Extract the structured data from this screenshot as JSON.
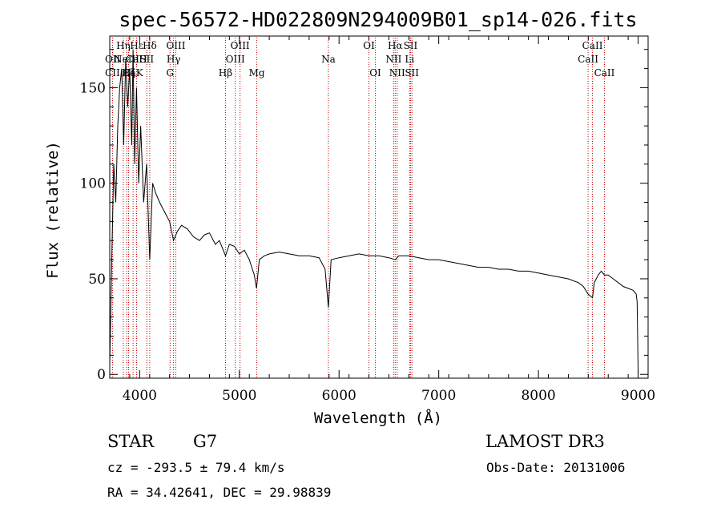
{
  "chart_data": {
    "type": "line",
    "title": "spec-56572-HD022809N294009B01_sp14-026.fits",
    "xlabel": "Wavelength (Å)",
    "ylabel": "Flux (relative)",
    "xlim": [
      3700,
      9100
    ],
    "ylim": [
      -2,
      177
    ],
    "xticks": [
      4000,
      5000,
      6000,
      7000,
      8000,
      9000
    ],
    "yticks": [
      0,
      50,
      100,
      150
    ],
    "spectrum": {
      "name": "flux",
      "x": [
        3700,
        3720,
        3740,
        3760,
        3780,
        3800,
        3820,
        3840,
        3860,
        3880,
        3900,
        3920,
        3934,
        3950,
        3968,
        3990,
        4010,
        4040,
        4070,
        4101,
        4130,
        4160,
        4200,
        4250,
        4300,
        4340,
        4380,
        4420,
        4480,
        4540,
        4600,
        4650,
        4700,
        4760,
        4800,
        4861,
        4900,
        4950,
        5000,
        5050,
        5100,
        5150,
        5172,
        5200,
        5250,
        5300,
        5400,
        5500,
        5600,
        5700,
        5800,
        5860,
        5893,
        5920,
        6000,
        6100,
        6200,
        6300,
        6400,
        6500,
        6563,
        6600,
        6700,
        6800,
        6900,
        7000,
        7100,
        7200,
        7300,
        7400,
        7500,
        7600,
        7700,
        7800,
        7900,
        8000,
        8100,
        8200,
        8300,
        8400,
        8450,
        8498,
        8542,
        8560,
        8600,
        8630,
        8662,
        8700,
        8750,
        8800,
        8850,
        8900,
        8950,
        8980,
        8990,
        9000
      ],
      "y": [
        5,
        60,
        110,
        90,
        130,
        150,
        160,
        120,
        165,
        140,
        160,
        120,
        170,
        110,
        150,
        100,
        130,
        90,
        110,
        60,
        100,
        95,
        90,
        85,
        80,
        70,
        75,
        78,
        76,
        72,
        70,
        73,
        74,
        68,
        70,
        62,
        68,
        67,
        63,
        65,
        60,
        52,
        45,
        60,
        62,
        63,
        64,
        63,
        62,
        62,
        61,
        55,
        35,
        60,
        61,
        62,
        63,
        62,
        62,
        61,
        60,
        62,
        62,
        61,
        60,
        60,
        59,
        58,
        57,
        56,
        56,
        55,
        55,
        54,
        54,
        53,
        52,
        51,
        50,
        48,
        46,
        42,
        40,
        48,
        52,
        54,
        52,
        52,
        50,
        48,
        46,
        45,
        44,
        42,
        38,
        0
      ]
    },
    "line_markers": [
      {
        "name": "CII",
        "wavelength": 3727,
        "row": 3
      },
      {
        "name": "OII",
        "wavelength": 3729,
        "row": 2
      },
      {
        "name": "Hη",
        "wavelength": 3836,
        "row": 1
      },
      {
        "name": "Hζ",
        "wavelength": 3889,
        "row": 3
      },
      {
        "name": "NeIII",
        "wavelength": 3869,
        "row": 2
      },
      {
        "name": "Hε",
        "wavelength": 3970,
        "row": 1
      },
      {
        "name": "CaK",
        "wavelength": 3934,
        "row": 3
      },
      {
        "name": "CaH",
        "wavelength": 3968,
        "row": 2
      },
      {
        "name": "Hδ",
        "wavelength": 4101,
        "row": 1
      },
      {
        "name": "SII",
        "wavelength": 4072,
        "row": 2
      },
      {
        "name": "OIII",
        "wavelength": 4363,
        "row": 1
      },
      {
        "name": "Hγ",
        "wavelength": 4340,
        "row": 2
      },
      {
        "name": "G",
        "wavelength": 4305,
        "row": 3
      },
      {
        "name": "Hβ",
        "wavelength": 4861,
        "row": 3
      },
      {
        "name": "OIII",
        "wavelength": 5007,
        "row": 1
      },
      {
        "name": "OIII",
        "wavelength": 4959,
        "row": 2
      },
      {
        "name": "Mg",
        "wavelength": 5175,
        "row": 3
      },
      {
        "name": "Na",
        "wavelength": 5893,
        "row": 2
      },
      {
        "name": "OI",
        "wavelength": 6300,
        "row": 1
      },
      {
        "name": "OI",
        "wavelength": 6364,
        "row": 3
      },
      {
        "name": "Hα",
        "wavelength": 6563,
        "row": 1
      },
      {
        "name": "NII",
        "wavelength": 6548,
        "row": 2
      },
      {
        "name": "NII",
        "wavelength": 6583,
        "row": 3
      },
      {
        "name": "SII",
        "wavelength": 6717,
        "row": 1
      },
      {
        "name": "Li",
        "wavelength": 6708,
        "row": 2
      },
      {
        "name": "SII",
        "wavelength": 6731,
        "row": 3
      },
      {
        "name": "CaII",
        "wavelength": 8542,
        "row": 1
      },
      {
        "name": "CaII",
        "wavelength": 8498,
        "row": 2
      },
      {
        "name": "CaII",
        "wavelength": 8662,
        "row": 3
      }
    ]
  },
  "info": {
    "object_class": "STAR",
    "subclass": "G7",
    "survey": "LAMOST DR3",
    "cz_line": "cz = -293.5 ± 79.4 km/s",
    "obs_date_line": "Obs-Date: 20131006",
    "coords_line": "RA =  34.42641, DEC =  29.98839"
  }
}
